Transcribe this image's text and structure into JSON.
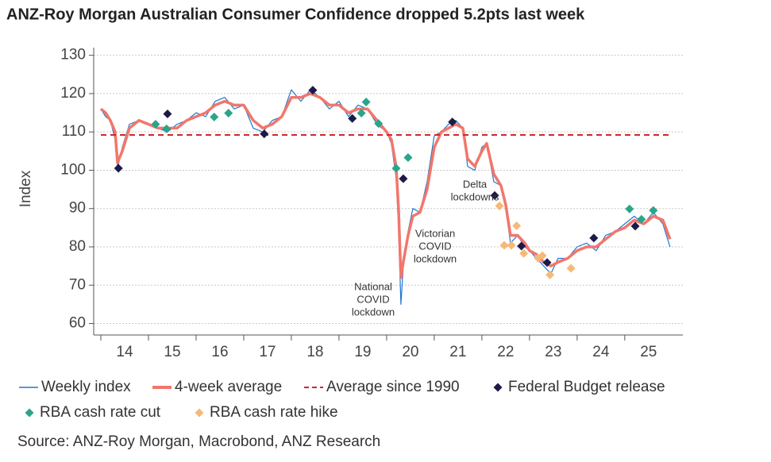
{
  "chart_data": {
    "type": "line",
    "title": "ANZ-Roy Morgan Australian Consumer Confidence dropped 5.2pts last week",
    "y_label": "Index",
    "source": "Source: ANZ-Roy Morgan, Macrobond, ANZ Research",
    "xlim": [
      13.85,
      26.22
    ],
    "ylim": [
      57,
      132
    ],
    "xticks": [
      14,
      15,
      16,
      17,
      18,
      19,
      20,
      21,
      22,
      23,
      24,
      25
    ],
    "yticks": [
      60,
      70,
      80,
      90,
      100,
      110,
      120,
      130
    ],
    "grid": true,
    "series": [
      {
        "name": "Weekly index",
        "kind": "line",
        "color": "#1f78d1",
        "x": [
          14.0,
          14.1,
          14.2,
          14.3,
          14.35,
          14.45,
          14.6,
          14.8,
          15.0,
          15.2,
          15.4,
          15.6,
          15.8,
          16.0,
          16.2,
          16.4,
          16.6,
          16.8,
          17.0,
          17.2,
          17.4,
          17.6,
          17.8,
          18.0,
          18.2,
          18.4,
          18.6,
          18.8,
          19.0,
          19.2,
          19.4,
          19.6,
          19.8,
          20.0,
          20.1,
          20.2,
          20.25,
          20.3,
          20.35,
          20.45,
          20.55,
          20.7,
          20.85,
          21.0,
          21.15,
          21.3,
          21.45,
          21.6,
          21.7,
          21.85,
          22.0,
          22.1,
          22.25,
          22.4,
          22.5,
          22.6,
          22.75,
          22.9,
          23.0,
          23.15,
          23.3,
          23.45,
          23.6,
          23.8,
          24.0,
          24.2,
          24.4,
          24.6,
          24.8,
          25.0,
          25.2,
          25.4,
          25.6,
          25.8,
          25.95
        ],
        "values": [
          116,
          114,
          113,
          108,
          100.5,
          106,
          112,
          113,
          112,
          111,
          110,
          112,
          113,
          115,
          114,
          118,
          119,
          116,
          117,
          111,
          110,
          113,
          114,
          121,
          118,
          121,
          119,
          116,
          118,
          114,
          117,
          116,
          112,
          110,
          107,
          98,
          85,
          65,
          75,
          84,
          90,
          89,
          97,
          109,
          110,
          112,
          113,
          111,
          101,
          100,
          106,
          107,
          97,
          96,
          90,
          81,
          83,
          80,
          79,
          77,
          75,
          73,
          77,
          77,
          80,
          81,
          79,
          83,
          84,
          86,
          88,
          86,
          89,
          86,
          80
        ]
      },
      {
        "name": "4-week average",
        "kind": "line",
        "color": "#f2766b",
        "x": [
          14.0,
          14.1,
          14.2,
          14.3,
          14.35,
          14.45,
          14.6,
          14.8,
          15.0,
          15.2,
          15.4,
          15.6,
          15.8,
          16.0,
          16.2,
          16.4,
          16.6,
          16.8,
          17.0,
          17.2,
          17.4,
          17.6,
          17.8,
          18.0,
          18.2,
          18.4,
          18.6,
          18.8,
          19.0,
          19.2,
          19.4,
          19.6,
          19.8,
          20.0,
          20.1,
          20.2,
          20.25,
          20.3,
          20.35,
          20.45,
          20.55,
          20.7,
          20.85,
          21.0,
          21.15,
          21.3,
          21.45,
          21.6,
          21.7,
          21.85,
          22.0,
          22.1,
          22.25,
          22.4,
          22.5,
          22.6,
          22.75,
          22.9,
          23.0,
          23.15,
          23.3,
          23.45,
          23.6,
          23.8,
          24.0,
          24.2,
          24.4,
          24.6,
          24.8,
          25.0,
          25.2,
          25.4,
          25.6,
          25.8,
          25.95
        ],
        "values": [
          116,
          115,
          113,
          110,
          102,
          105,
          111,
          113,
          112,
          111,
          111,
          111,
          113,
          114,
          115,
          117,
          118,
          117,
          117,
          113,
          111,
          112,
          114,
          119,
          119,
          120,
          119,
          117,
          117,
          115,
          116,
          116,
          113,
          110,
          108,
          101,
          90,
          72,
          76,
          83,
          88,
          89,
          95,
          106,
          110,
          111,
          112,
          111,
          103,
          101,
          105,
          107,
          99,
          96,
          91,
          83,
          83,
          81,
          79,
          78,
          76,
          75,
          76,
          77,
          79,
          80,
          80,
          82,
          84,
          85,
          87,
          86,
          88,
          87,
          82
        ]
      },
      {
        "name": "Average since 1990",
        "kind": "hline",
        "color": "#d0262b",
        "value": 109.2
      },
      {
        "name": "Federal Budget release",
        "kind": "scatter",
        "color": "#1c1a48",
        "x": [
          14.37,
          15.4,
          17.43,
          18.45,
          19.28,
          20.35,
          21.38,
          22.27,
          22.83,
          23.37,
          24.35,
          25.22
        ],
        "values": [
          100.5,
          114.7,
          109.5,
          120.9,
          113.5,
          97.8,
          112.6,
          93.4,
          80.2,
          75.9,
          82.3,
          85.4
        ]
      },
      {
        "name": "RBA cash rate cut",
        "kind": "scatter",
        "color": "#2aa58a",
        "x": [
          15.15,
          15.38,
          16.38,
          16.68,
          19.47,
          19.57,
          19.83,
          20.2,
          20.45,
          25.1,
          25.35,
          25.6
        ],
        "values": [
          112,
          110.8,
          113.9,
          114.9,
          114.9,
          117.8,
          112.2,
          100.5,
          103.3,
          89.9,
          87.2,
          89.5
        ]
      },
      {
        "name": "RBA cash rate hike",
        "kind": "scatter",
        "color": "#f7b977",
        "x": [
          22.37,
          22.47,
          22.62,
          22.73,
          22.88,
          23.18,
          23.27,
          23.43,
          23.87
        ],
        "values": [
          90.7,
          80.4,
          80.4,
          85.5,
          78.3,
          77.1,
          77.7,
          72.7,
          74.4
        ]
      }
    ],
    "annotations": [
      [
        "National",
        "COVID",
        "lockdown"
      ],
      [
        "Victorian",
        "COVID",
        "lockdown"
      ],
      [
        "Delta",
        "lockdowns"
      ]
    ]
  }
}
